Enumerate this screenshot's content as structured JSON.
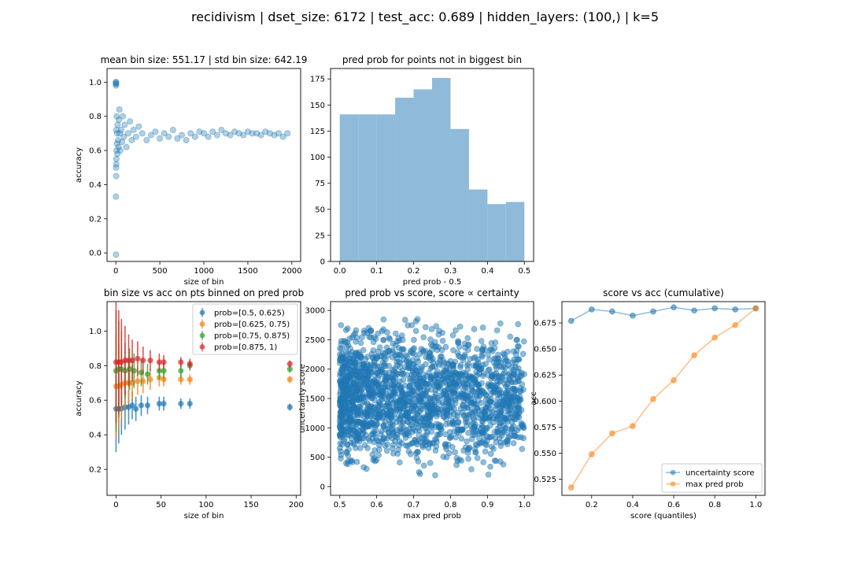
{
  "figure": {
    "suptitle": "recidivism | dset_size: 6172 | test_acc: 0.689 | hidden_layers: (100,) | k=5",
    "colors": {
      "blue": "#1f77b4",
      "orange": "#ff7f0e",
      "green": "#2ca02c",
      "red": "#d62728",
      "hist": "#8fbad9"
    }
  },
  "chart_data": [
    {
      "id": "p1",
      "type": "scatter",
      "title": "mean bin size: 551.17 | std bin size: 642.19",
      "xlabel": "size of bin",
      "ylabel": "accuracy",
      "xlim": [
        -100,
        2100
      ],
      "ylim": [
        -0.05,
        1.08
      ],
      "xticks": [
        0,
        500,
        1000,
        1500,
        2000
      ],
      "yticks": [
        0.0,
        0.2,
        0.4,
        0.6,
        0.8,
        1.0
      ],
      "ytick_labels": [
        "0.0",
        "0.2",
        "0.4",
        "0.6",
        "0.8",
        "1.0"
      ],
      "series": [
        {
          "points": [
            [
              1,
              1.0
            ],
            [
              1,
              0.99
            ],
            [
              2,
              1.0
            ],
            [
              2,
              0.98
            ],
            [
              3,
              0.99
            ],
            [
              1,
              0.33
            ],
            [
              2,
              -0.01
            ],
            [
              3,
              0.5
            ],
            [
              4,
              0.45
            ],
            [
              5,
              0.52
            ],
            [
              6,
              0.55
            ],
            [
              6,
              0.72
            ],
            [
              8,
              0.6
            ],
            [
              10,
              0.8
            ],
            [
              12,
              0.64
            ],
            [
              15,
              0.7
            ],
            [
              18,
              0.58
            ],
            [
              20,
              0.75
            ],
            [
              25,
              0.66
            ],
            [
              30,
              0.62
            ],
            [
              35,
              0.78
            ],
            [
              40,
              0.84
            ],
            [
              45,
              0.7
            ],
            [
              50,
              0.6
            ],
            [
              60,
              0.72
            ],
            [
              70,
              0.65
            ],
            [
              80,
              0.8
            ],
            [
              90,
              0.68
            ],
            [
              100,
              0.75
            ],
            [
              120,
              0.62
            ],
            [
              140,
              0.7
            ],
            [
              160,
              0.77
            ],
            [
              180,
              0.66
            ],
            [
              200,
              0.72
            ],
            [
              230,
              0.68
            ],
            [
              260,
              0.74
            ],
            [
              300,
              0.7
            ],
            [
              350,
              0.66
            ],
            [
              400,
              0.69
            ],
            [
              450,
              0.71
            ],
            [
              500,
              0.67
            ],
            [
              550,
              0.7
            ],
            [
              600,
              0.68
            ],
            [
              650,
              0.72
            ],
            [
              700,
              0.67
            ],
            [
              750,
              0.69
            ],
            [
              800,
              0.66
            ],
            [
              850,
              0.7
            ],
            [
              900,
              0.68
            ],
            [
              950,
              0.71
            ],
            [
              1000,
              0.7
            ],
            [
              1050,
              0.68
            ],
            [
              1100,
              0.71
            ],
            [
              1150,
              0.69
            ],
            [
              1200,
              0.72
            ],
            [
              1250,
              0.7
            ],
            [
              1300,
              0.69
            ],
            [
              1350,
              0.71
            ],
            [
              1400,
              0.7
            ],
            [
              1450,
              0.69
            ],
            [
              1500,
              0.71
            ],
            [
              1550,
              0.7
            ],
            [
              1600,
              0.7
            ],
            [
              1650,
              0.69
            ],
            [
              1700,
              0.71
            ],
            [
              1750,
              0.7
            ],
            [
              1800,
              0.69
            ],
            [
              1850,
              0.7
            ],
            [
              1900,
              0.68
            ],
            [
              1950,
              0.7
            ]
          ]
        }
      ]
    },
    {
      "id": "p2",
      "type": "bar",
      "title": "pred prob for points not in biggest bin",
      "xlabel": "pred prob - 0.5",
      "ylabel": "",
      "xlim": [
        -0.025,
        0.525
      ],
      "ylim": [
        0,
        185
      ],
      "xticks": [
        0.0,
        0.1,
        0.2,
        0.3,
        0.4,
        0.5
      ],
      "xtick_labels": [
        "0.0",
        "0.1",
        "0.2",
        "0.3",
        "0.4",
        "0.5"
      ],
      "yticks": [
        0,
        25,
        50,
        75,
        100,
        125,
        150,
        175
      ],
      "bin_edges": [
        0.0,
        0.05,
        0.1,
        0.15,
        0.2,
        0.25,
        0.3,
        0.35,
        0.4,
        0.45,
        0.5
      ],
      "values": [
        141,
        141,
        141,
        157,
        165,
        176,
        127,
        69,
        55,
        57
      ]
    },
    {
      "id": "p3",
      "type": "scatter",
      "title": "bin size vs acc on pts binned on pred prob",
      "xlabel": "size of bin",
      "ylabel": "accuracy",
      "xlim": [
        -10,
        205
      ],
      "ylim": [
        0.05,
        1.17
      ],
      "xticks": [
        0,
        50,
        100,
        150,
        200
      ],
      "yticks": [
        0.2,
        0.4,
        0.6,
        0.8,
        1.0
      ],
      "ytick_labels": [
        "0.2",
        "0.4",
        "0.6",
        "0.8",
        "1.0"
      ],
      "legend": "top-right",
      "series": [
        {
          "name": "prob=[0.5, 0.625)",
          "color": "blue",
          "points": [
            [
              0,
              0.55
            ],
            [
              3,
              0.55
            ],
            [
              6,
              0.55
            ],
            [
              10,
              0.56
            ],
            [
              14,
              0.56
            ],
            [
              18,
              0.57
            ],
            [
              22,
              0.55
            ],
            [
              28,
              0.57
            ],
            [
              35,
              0.57
            ],
            [
              48,
              0.58
            ],
            [
              53,
              0.58
            ],
            [
              72,
              0.58
            ],
            [
              82,
              0.58
            ],
            [
              193,
              0.56
            ]
          ],
          "err": [
            0.25,
            0.2,
            0.15,
            0.13,
            0.1,
            0.08,
            0.07,
            0.06,
            0.05,
            0.04,
            0.04,
            0.03,
            0.03,
            0.02
          ]
        },
        {
          "name": "prob=[0.625, 0.75)",
          "color": "orange",
          "points": [
            [
              0,
              0.68
            ],
            [
              3,
              0.68
            ],
            [
              6,
              0.69
            ],
            [
              10,
              0.7
            ],
            [
              14,
              0.7
            ],
            [
              18,
              0.7
            ],
            [
              24,
              0.71
            ],
            [
              30,
              0.71
            ],
            [
              38,
              0.72
            ],
            [
              48,
              0.73
            ],
            [
              53,
              0.72
            ],
            [
              72,
              0.72
            ],
            [
              82,
              0.72
            ],
            [
              193,
              0.72
            ]
          ],
          "err": [
            0.3,
            0.25,
            0.2,
            0.15,
            0.12,
            0.1,
            0.08,
            0.07,
            0.06,
            0.05,
            0.04,
            0.03,
            0.03,
            0.02
          ]
        },
        {
          "name": "prob=[0.75, 0.875)",
          "color": "green",
          "points": [
            [
              0,
              0.77
            ],
            [
              3,
              0.78
            ],
            [
              6,
              0.78
            ],
            [
              10,
              0.77
            ],
            [
              15,
              0.78
            ],
            [
              20,
              0.77
            ],
            [
              28,
              0.76
            ],
            [
              35,
              0.75
            ],
            [
              48,
              0.77
            ],
            [
              53,
              0.77
            ],
            [
              72,
              0.77
            ],
            [
              82,
              0.8
            ],
            [
              193,
              0.78
            ]
          ],
          "err": [
            0.35,
            0.28,
            0.22,
            0.16,
            0.12,
            0.1,
            0.08,
            0.06,
            0.05,
            0.05,
            0.04,
            0.03,
            0.02
          ]
        },
        {
          "name": "prob=[0.875, 1)",
          "color": "red",
          "points": [
            [
              0,
              0.82
            ],
            [
              3,
              0.82
            ],
            [
              6,
              0.82
            ],
            [
              10,
              0.83
            ],
            [
              14,
              0.83
            ],
            [
              18,
              0.83
            ],
            [
              24,
              0.84
            ],
            [
              30,
              0.83
            ],
            [
              38,
              0.83
            ],
            [
              48,
              0.82
            ],
            [
              53,
              0.82
            ],
            [
              72,
              0.82
            ],
            [
              82,
              0.81
            ],
            [
              193,
              0.81
            ]
          ],
          "err": [
            0.35,
            0.3,
            0.25,
            0.2,
            0.15,
            0.12,
            0.1,
            0.08,
            0.06,
            0.05,
            0.04,
            0.03,
            0.03,
            0.02
          ]
        }
      ]
    },
    {
      "id": "p4",
      "type": "scatter",
      "title": "pred prob vs score, score ∝ certainty",
      "xlabel": "max pred prob",
      "ylabel": "uncertainty score",
      "xlim": [
        0.475,
        1.025
      ],
      "ylim": [
        -150,
        3150
      ],
      "xticks": [
        0.5,
        0.6,
        0.7,
        0.8,
        0.9,
        1.0
      ],
      "xtick_labels": [
        "0.5",
        "0.6",
        "0.7",
        "0.8",
        "0.9",
        "1.0"
      ],
      "yticks": [
        0,
        500,
        1000,
        1500,
        2000,
        2500,
        3000
      ],
      "point_count": 2000,
      "x_range": [
        0.5,
        1.0
      ],
      "y_range": [
        0,
        3050
      ]
    },
    {
      "id": "p5",
      "type": "line",
      "title": "score vs acc (cumulative)",
      "xlabel": "score (quantiles)",
      "ylabel": "acc",
      "xlim": [
        0.055,
        1.045
      ],
      "ylim": [
        0.5095,
        0.6955
      ],
      "xticks": [
        0.2,
        0.4,
        0.6,
        0.8,
        1.0
      ],
      "xtick_labels": [
        "0.2",
        "0.4",
        "0.6",
        "0.8",
        "1.0"
      ],
      "yticks": [
        0.525,
        0.55,
        0.575,
        0.6,
        0.625,
        0.65,
        0.675
      ],
      "ytick_labels": [
        "0.525",
        "0.550",
        "0.575",
        "0.600",
        "0.625",
        "0.650",
        "0.675"
      ],
      "legend": "bottom-right",
      "x": [
        0.1,
        0.2,
        0.3,
        0.4,
        0.5,
        0.6,
        0.7,
        0.8,
        0.9,
        1.0
      ],
      "series": [
        {
          "name": "uncertainty score",
          "color": "blue",
          "values": [
            0.677,
            0.688,
            0.686,
            0.682,
            0.686,
            0.69,
            0.687,
            0.689,
            0.688,
            0.689
          ]
        },
        {
          "name": "max pred prob",
          "color": "orange",
          "values": [
            0.517,
            0.549,
            0.569,
            0.576,
            0.602,
            0.62,
            0.644,
            0.661,
            0.673,
            0.689
          ]
        }
      ]
    }
  ]
}
